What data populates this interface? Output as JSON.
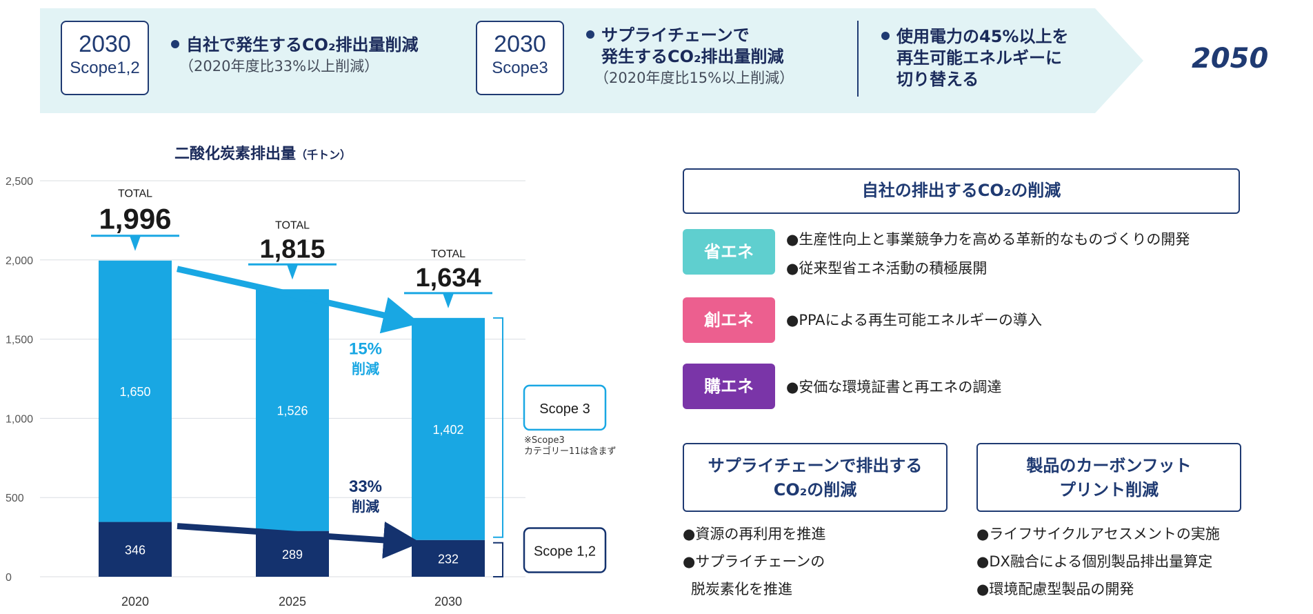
{
  "banner": {
    "box1": {
      "year": "2030",
      "scope": "Scope1,2"
    },
    "item1_main": "自社で発生するCO₂排出量削減",
    "item1_sub": "（2020年度比33%以上削減）",
    "box2": {
      "year": "2030",
      "scope": "Scope3"
    },
    "item2_main_line1": "サプライチェーンで",
    "item2_main_line2": "発生するCO₂排出量削減",
    "item2_sub": "（2020年度比15%以上削減）",
    "item3_line1": "使用電力の45%以上を",
    "item3_line2": "再生可能エネルギーに",
    "item3_line3": "切り替える",
    "goal": "2050",
    "colors": {
      "banner_bg": "#e2f3f5",
      "navy": "#1f3a72"
    }
  },
  "chart_data": {
    "type": "bar",
    "stacked": true,
    "title": "二酸化炭素排出量",
    "unit_label": "（千トン）",
    "categories": [
      "2020",
      "2025",
      "2030"
    ],
    "series": [
      {
        "name": "Scope 1,2",
        "values": [
          346,
          289,
          232
        ],
        "color": "#14326e"
      },
      {
        "name": "Scope 3",
        "values": [
          1650,
          1526,
          1402
        ],
        "color": "#19a7e3"
      }
    ],
    "totals": [
      1996,
      1815,
      1634
    ],
    "total_labels": [
      "1,996",
      "1,815",
      "1,634"
    ],
    "total_caption": "TOTAL",
    "segment_labels": {
      "scope12": [
        "346",
        "289",
        "232"
      ],
      "scope3": [
        "1,650",
        "1,526",
        "1,402"
      ]
    },
    "yticks": [
      "0",
      "500",
      "1,000",
      "1,500",
      "2,000",
      "2,500"
    ],
    "ylim": [
      0,
      2500
    ],
    "grid": true,
    "annotations": {
      "scope3_pct": "15%",
      "scope3_word": "削減",
      "scope12_pct": "33%",
      "scope12_word": "削減",
      "legend_scope3": "Scope 3",
      "legend_scope12": "Scope 1,2",
      "note_line1": "※Scope3",
      "note_line2": "カテゴリー11は含まず"
    }
  },
  "initiatives": {
    "own_title": "自社の排出するCO₂の削減",
    "categories": [
      {
        "label": "省エネ",
        "color": "#5fcfcf",
        "items": [
          "生産性向上と事業競争力を高める革新的なものづくりの開発",
          "従来型省エネ活動の積極展開"
        ]
      },
      {
        "label": "創エネ",
        "color": "#ec5f8f",
        "items": [
          "PPAによる再生可能エネルギーの導入"
        ]
      },
      {
        "label": "購エネ",
        "color": "#7a35a8",
        "items": [
          "安価な環境証書と再エネの調達"
        ]
      }
    ],
    "supply_title_line1": "サプライチェーンで排出する",
    "supply_title_line2": "CO₂の削減",
    "supply_items": [
      "資源の再利用を推進",
      "サプライチェーンの",
      "脱炭素化を推進"
    ],
    "product_title_line1": "製品のカーボンフット",
    "product_title_line2": "プリント削減",
    "product_items": [
      "ライフサイクルアセスメントの実施",
      "DX融合による個別製品排出量算定",
      "環境配慮型製品の開発"
    ]
  }
}
